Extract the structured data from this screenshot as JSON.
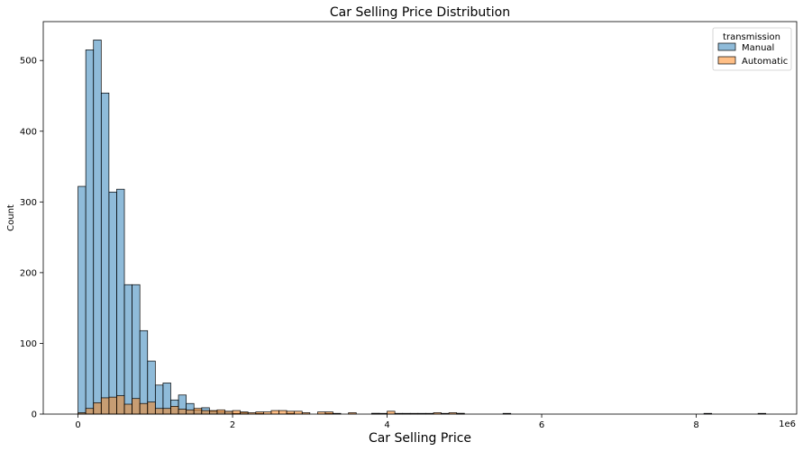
{
  "chart_data": {
    "type": "bar",
    "subtype": "histogram",
    "title": "Car Selling Price Distribution",
    "xlabel": "Car Selling Price",
    "ylabel": "Count",
    "x_offset_label": "1e6",
    "xlim": [
      -0.45,
      9.3
    ],
    "ylim": [
      0,
      555
    ],
    "x_ticks": [
      0,
      2,
      4,
      6,
      8
    ],
    "x_tick_labels": [
      "0",
      "2",
      "4",
      "6",
      "8"
    ],
    "y_ticks": [
      0,
      100,
      200,
      300,
      400,
      500
    ],
    "y_tick_labels": [
      "0",
      "100",
      "200",
      "300",
      "400",
      "500"
    ],
    "bin_width": 0.1,
    "legend": {
      "title": "transmission",
      "placement": "top-right"
    },
    "grid": false,
    "series": [
      {
        "name": "Manual",
        "color": "#1f77b4",
        "bins": [
          [
            0.0,
            322
          ],
          [
            0.1,
            515
          ],
          [
            0.2,
            529
          ],
          [
            0.3,
            454
          ],
          [
            0.4,
            314
          ],
          [
            0.5,
            318
          ],
          [
            0.6,
            183
          ],
          [
            0.7,
            183
          ],
          [
            0.8,
            118
          ],
          [
            0.9,
            75
          ],
          [
            1.0,
            41
          ],
          [
            1.1,
            44
          ],
          [
            1.2,
            20
          ],
          [
            1.3,
            27
          ],
          [
            1.4,
            15
          ],
          [
            1.5,
            6
          ],
          [
            1.6,
            9
          ],
          [
            1.7,
            4
          ],
          [
            1.8,
            3
          ],
          [
            1.9,
            4
          ],
          [
            2.0,
            1
          ],
          [
            2.1,
            2
          ],
          [
            2.3,
            1
          ],
          [
            2.7,
            1
          ],
          [
            3.2,
            1
          ],
          [
            3.8,
            1
          ],
          [
            4.2,
            1
          ],
          [
            4.4,
            1
          ],
          [
            4.9,
            1
          ],
          [
            5.5,
            1
          ],
          [
            8.1,
            1
          ],
          [
            8.8,
            1
          ]
        ]
      },
      {
        "name": "Automatic",
        "color": "#ff7f0e",
        "bins": [
          [
            0.0,
            2
          ],
          [
            0.1,
            8
          ],
          [
            0.2,
            16
          ],
          [
            0.3,
            23
          ],
          [
            0.4,
            24
          ],
          [
            0.5,
            26
          ],
          [
            0.6,
            14
          ],
          [
            0.7,
            22
          ],
          [
            0.8,
            15
          ],
          [
            0.9,
            17
          ],
          [
            1.0,
            8
          ],
          [
            1.1,
            8
          ],
          [
            1.2,
            11
          ],
          [
            1.3,
            7
          ],
          [
            1.4,
            6
          ],
          [
            1.5,
            8
          ],
          [
            1.6,
            5
          ],
          [
            1.7,
            5
          ],
          [
            1.8,
            6
          ],
          [
            1.9,
            4
          ],
          [
            2.0,
            5
          ],
          [
            2.1,
            3
          ],
          [
            2.2,
            2
          ],
          [
            2.3,
            3
          ],
          [
            2.4,
            3
          ],
          [
            2.5,
            5
          ],
          [
            2.6,
            5
          ],
          [
            2.7,
            4
          ],
          [
            2.8,
            4
          ],
          [
            2.9,
            2
          ],
          [
            3.1,
            3
          ],
          [
            3.2,
            3
          ],
          [
            3.3,
            1
          ],
          [
            3.5,
            2
          ],
          [
            3.8,
            1
          ],
          [
            3.9,
            1
          ],
          [
            4.0,
            4
          ],
          [
            4.1,
            1
          ],
          [
            4.3,
            1
          ],
          [
            4.5,
            1
          ],
          [
            4.6,
            2
          ],
          [
            4.7,
            1
          ],
          [
            4.8,
            2
          ],
          [
            4.9,
            1
          ]
        ]
      }
    ]
  }
}
